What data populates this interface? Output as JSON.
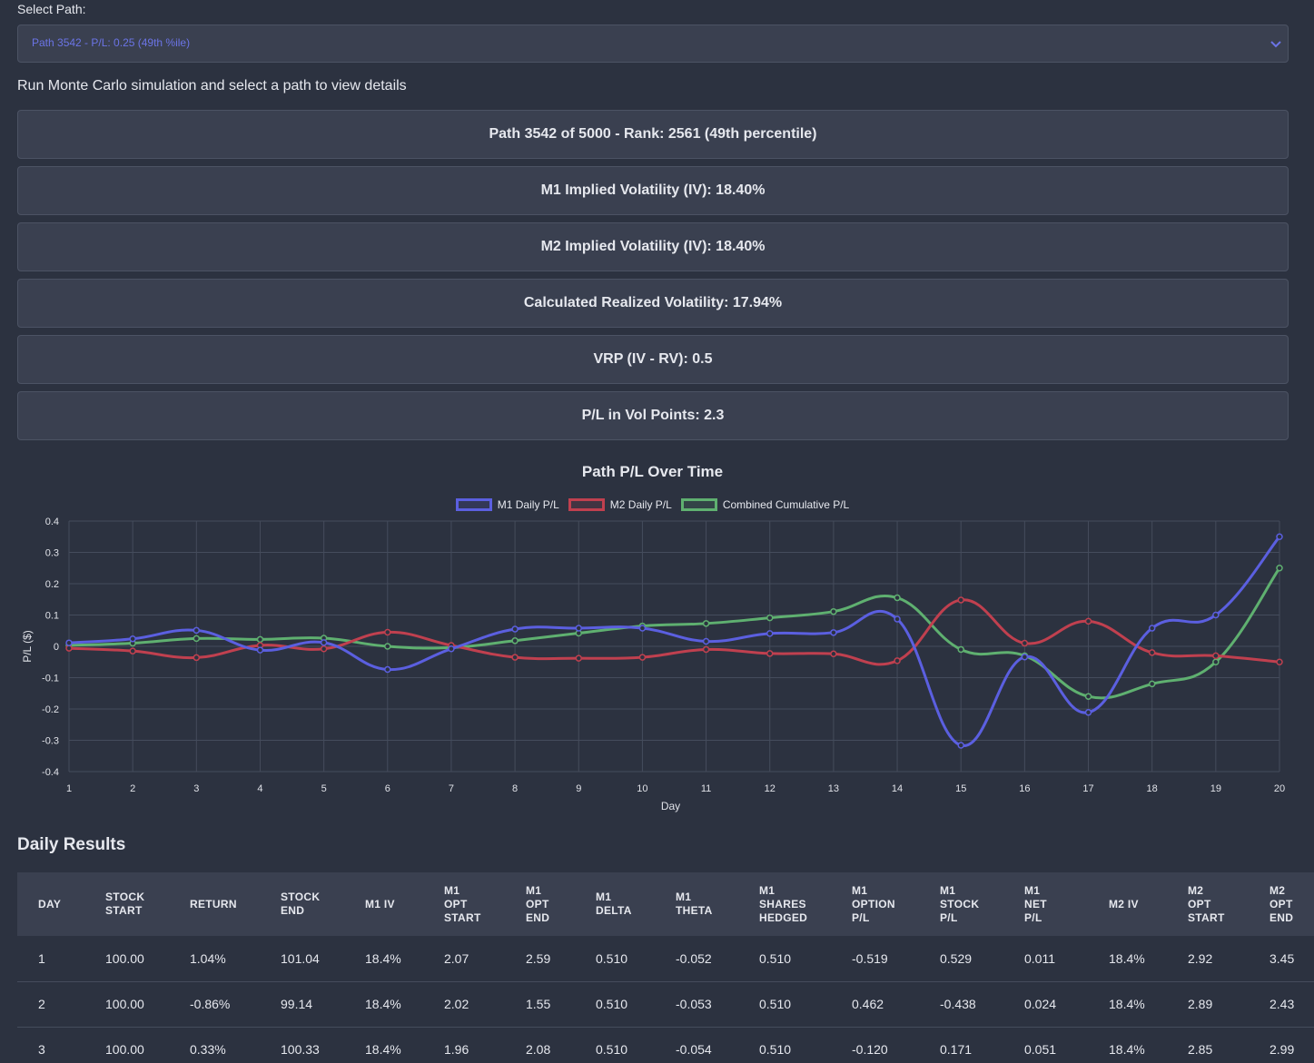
{
  "select": {
    "label": "Select Path:",
    "value": "Path 3542 - P/L: 0.25 (49th %ile)"
  },
  "info_text": "Run Monte Carlo simulation and select a path to view details",
  "stats": [
    "Path 3542 of 5000 - Rank: 2561 (49th percentile)",
    "M1 Implied Volatility (IV): 18.40%",
    "M2 Implied Volatility (IV): 18.40%",
    "Calculated Realized Volatility: 17.94%",
    "VRP (IV - RV): 0.5",
    "P/L in Vol Points: 2.3"
  ],
  "chart_data": {
    "type": "line",
    "title": "Path P/L Over Time",
    "xlabel": "Day",
    "ylabel": "P/L ($)",
    "x": [
      1,
      2,
      3,
      4,
      5,
      6,
      7,
      8,
      9,
      10,
      11,
      12,
      13,
      14,
      15,
      16,
      17,
      18,
      19,
      20
    ],
    "ylim": [
      -0.4,
      0.4
    ],
    "yticks": [
      "0.4",
      "0.3",
      "0.2",
      "0.1",
      "0",
      "-0.1",
      "-0.2",
      "-0.3",
      "-0.4"
    ],
    "grid": true,
    "legend_position": "top-center",
    "series": [
      {
        "name": "M1 Daily P/L",
        "color": "#5b5fe0",
        "values": [
          0.011,
          0.024,
          0.051,
          -0.012,
          0.012,
          -0.074,
          -0.008,
          0.055,
          0.058,
          0.058,
          0.016,
          0.041,
          0.044,
          0.087,
          -0.316,
          -0.034,
          -0.211,
          0.058,
          0.1,
          0.35
        ]
      },
      {
        "name": "M2 Daily P/L",
        "color": "#c0404f",
        "values": [
          -0.006,
          -0.015,
          -0.036,
          0.003,
          -0.008,
          0.045,
          0.003,
          -0.035,
          -0.038,
          -0.035,
          -0.01,
          -0.023,
          -0.024,
          -0.046,
          0.148,
          0.01,
          0.08,
          -0.02,
          -0.03,
          -0.05
        ]
      },
      {
        "name": "Combined Cumulative P/L",
        "color": "#5fb070",
        "values": [
          0.003,
          0.01,
          0.025,
          0.022,
          0.026,
          0.0,
          -0.004,
          0.018,
          0.042,
          0.065,
          0.073,
          0.091,
          0.111,
          0.155,
          -0.01,
          -0.03,
          -0.16,
          -0.12,
          -0.05,
          0.25
        ]
      }
    ]
  },
  "section_title": "Daily Results",
  "table": {
    "columns": [
      [
        "DAY"
      ],
      [
        "STOCK",
        "START"
      ],
      [
        "RETURN"
      ],
      [
        "STOCK",
        "END"
      ],
      [
        "M1 IV"
      ],
      [
        "M1",
        "OPT",
        "START"
      ],
      [
        "M1",
        "OPT",
        "END"
      ],
      [
        "M1",
        "DELTA"
      ],
      [
        "M1",
        "THETA"
      ],
      [
        "M1",
        "SHARES",
        "HEDGED"
      ],
      [
        "M1",
        "OPTION",
        "P/L"
      ],
      [
        "M1",
        "STOCK",
        "P/L"
      ],
      [
        "M1",
        "NET",
        "P/L"
      ],
      [
        "M2 IV"
      ],
      [
        "M2",
        "OPT",
        "START"
      ],
      [
        "M2",
        "OPT",
        "END"
      ]
    ],
    "rows": [
      [
        "1",
        "100.00",
        "1.04%",
        "101.04",
        "18.4%",
        "2.07",
        "2.59",
        "0.510",
        "-0.052",
        "0.510",
        "-0.519",
        "0.529",
        "0.011",
        "18.4%",
        "2.92",
        "3.45"
      ],
      [
        "2",
        "100.00",
        "-0.86%",
        "99.14",
        "18.4%",
        "2.02",
        "1.55",
        "0.510",
        "-0.053",
        "0.510",
        "0.462",
        "-0.438",
        "0.024",
        "18.4%",
        "2.89",
        "2.43"
      ],
      [
        "3",
        "100.00",
        "0.33%",
        "100.33",
        "18.4%",
        "1.96",
        "2.08",
        "0.510",
        "-0.054",
        "0.510",
        "-0.120",
        "0.171",
        "0.051",
        "18.4%",
        "2.85",
        "2.99"
      ]
    ]
  }
}
